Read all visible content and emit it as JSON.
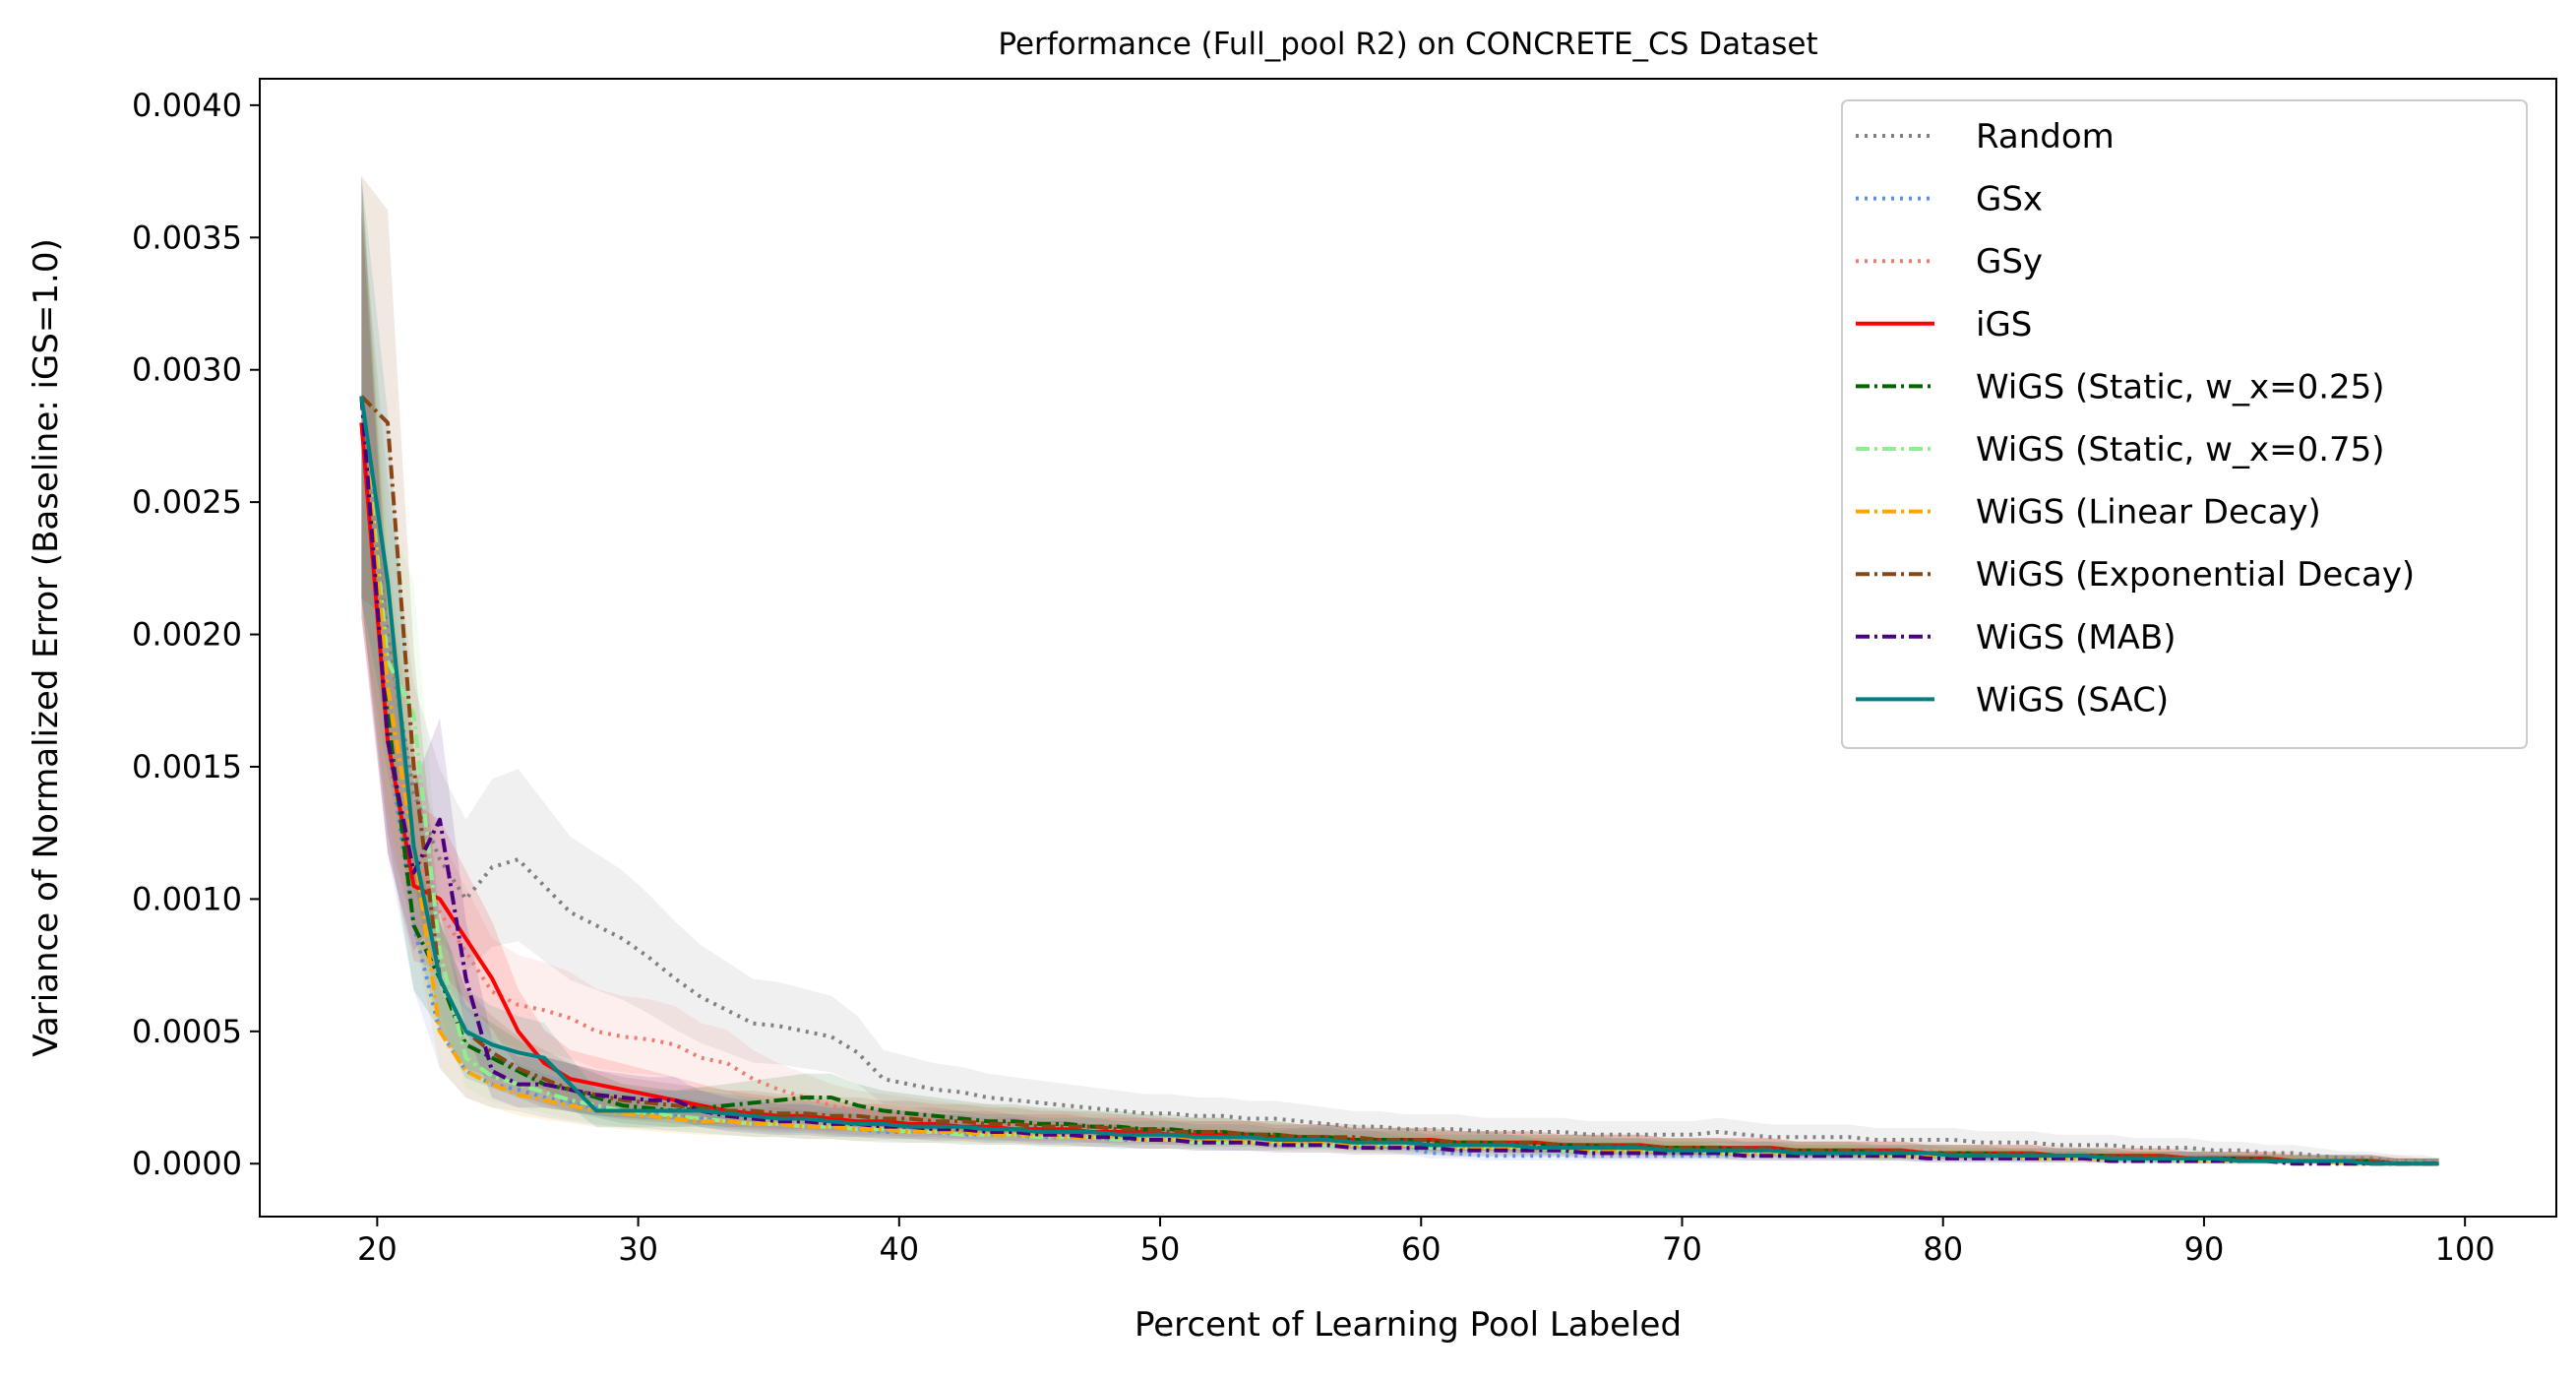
{
  "chart_data": {
    "type": "line",
    "title": "Performance (Full_pool R2) on CONCRETE_CS Dataset",
    "xlabel": "Percent of Learning Pool Labeled",
    "ylabel": "Variance of Normalized Error (Baseline: iGS=1.0)",
    "xlim": [
      15.5,
      103.5
    ],
    "ylim": [
      -0.0002,
      0.0041
    ],
    "xticks": [
      20,
      30,
      40,
      50,
      60,
      70,
      80,
      90,
      100
    ],
    "yticks": [
      0.0,
      0.0005,
      0.001,
      0.0015,
      0.002,
      0.0025,
      0.003,
      0.0035,
      0.004
    ],
    "ytick_labels": [
      "0.0000",
      "0.0005",
      "0.0010",
      "0.0015",
      "0.0020",
      "0.0025",
      "0.0030",
      "0.0035",
      "0.0040"
    ],
    "grid": false,
    "legend_position": "top-right",
    "x": [
      19.4,
      20.4,
      21.4,
      22.4,
      23.4,
      24.4,
      25.4,
      26.4,
      27.4,
      28.4,
      29.4,
      30.4,
      31.4,
      32.4,
      33.4,
      34.4,
      35.4,
      36.4,
      37.4,
      38.4,
      39.4,
      40.4,
      41.4,
      42.4,
      43.4,
      44.4,
      45.4,
      46.4,
      47.4,
      48.4,
      49.4,
      50.4,
      51.4,
      52.4,
      53.4,
      54.4,
      55.4,
      56.4,
      57.4,
      58.4,
      59.4,
      60.4,
      61.4,
      62.4,
      63.4,
      64.4,
      65.4,
      66.4,
      67.4,
      68.4,
      69.4,
      70.4,
      71.4,
      72.4,
      73.4,
      74.4,
      75.4,
      76.4,
      77.4,
      78.4,
      79.4,
      80.4,
      81.4,
      82.4,
      83.4,
      84.4,
      85.4,
      86.4,
      87.4,
      88.4,
      89.4,
      90.4,
      91.4,
      92.4,
      93.4,
      94.4,
      95.4,
      96.4,
      97.4,
      98.4,
      99.0
    ],
    "series": [
      {
        "name": "Random",
        "color": "#808080",
        "dash": "dotted",
        "band": true,
        "values": [
          0.0028,
          0.002,
          0.0014,
          0.00115,
          0.001,
          0.00112,
          0.00115,
          0.00105,
          0.00095,
          0.0009,
          0.00085,
          0.00078,
          0.0007,
          0.00063,
          0.00058,
          0.00053,
          0.00052,
          0.0005,
          0.00048,
          0.00042,
          0.00032,
          0.0003,
          0.00028,
          0.00027,
          0.00025,
          0.00024,
          0.00023,
          0.00022,
          0.00021,
          0.0002,
          0.00019,
          0.00019,
          0.00018,
          0.00018,
          0.00017,
          0.00017,
          0.00016,
          0.00015,
          0.00014,
          0.00014,
          0.00013,
          0.00013,
          0.00013,
          0.00012,
          0.00012,
          0.00012,
          0.00012,
          0.00011,
          0.00011,
          0.00011,
          0.00011,
          0.00011,
          0.00012,
          0.00011,
          0.0001,
          0.0001,
          0.0001,
          0.0001,
          9e-05,
          9e-05,
          9e-05,
          9e-05,
          8e-05,
          8e-05,
          8e-05,
          7e-05,
          7e-05,
          7e-05,
          6e-05,
          6e-05,
          6e-05,
          5e-05,
          5e-05,
          4e-05,
          4e-05,
          3e-05,
          2e-05,
          2e-05,
          1e-05,
          1e-05,
          0.0
        ]
      },
      {
        "name": "GSx",
        "color": "#5b8ee6",
        "dash": "dotted",
        "band": true,
        "values": [
          0.0028,
          0.0016,
          0.0009,
          0.0005,
          0.00035,
          0.0003,
          0.00028,
          0.00025,
          0.00023,
          0.00021,
          0.0002,
          0.00019,
          0.00018,
          0.00017,
          0.00016,
          0.00015,
          0.00015,
          0.00014,
          0.00014,
          0.00013,
          0.00012,
          0.00012,
          0.00012,
          0.00011,
          0.00011,
          0.00011,
          0.0001,
          0.0001,
          0.0001,
          9e-05,
          9e-05,
          9e-05,
          9e-05,
          8e-05,
          8e-05,
          8e-05,
          9e-05,
          0.0001,
          9e-05,
          8e-05,
          6e-05,
          4e-05,
          4e-05,
          3e-05,
          3e-05,
          3e-05,
          3e-05,
          3e-05,
          3e-05,
          3e-05,
          3e-05,
          3e-05,
          3e-05,
          3e-05,
          3e-05,
          3e-05,
          3e-05,
          3e-05,
          3e-05,
          3e-05,
          2e-05,
          2e-05,
          2e-05,
          2e-05,
          2e-05,
          2e-05,
          2e-05,
          2e-05,
          2e-05,
          2e-05,
          2e-05,
          1e-05,
          1e-05,
          1e-05,
          1e-05,
          1e-05,
          1e-05,
          1e-05,
          0.0,
          0.0,
          0.0
        ]
      },
      {
        "name": "GSy",
        "color": "#f07c6e",
        "dash": "dotted",
        "band": true,
        "values": [
          0.0028,
          0.0017,
          0.0012,
          0.00095,
          0.0008,
          0.00065,
          0.0006,
          0.00058,
          0.00055,
          0.0005,
          0.00048,
          0.00047,
          0.00045,
          0.0004,
          0.00038,
          0.00032,
          0.00028,
          0.00025,
          0.00022,
          0.0002,
          0.00019,
          0.00018,
          0.00017,
          0.00016,
          0.00016,
          0.00015,
          0.00015,
          0.00014,
          0.00013,
          0.00013,
          0.00012,
          0.00012,
          0.00011,
          0.00011,
          0.00011,
          0.0001,
          0.0001,
          0.0001,
          9e-05,
          9e-05,
          9e-05,
          8e-05,
          8e-05,
          8e-05,
          8e-05,
          7e-05,
          7e-05,
          7e-05,
          7e-05,
          7e-05,
          6e-05,
          6e-05,
          6e-05,
          6e-05,
          6e-05,
          5e-05,
          5e-05,
          5e-05,
          5e-05,
          5e-05,
          5e-05,
          4e-05,
          4e-05,
          4e-05,
          4e-05,
          4e-05,
          3e-05,
          3e-05,
          3e-05,
          3e-05,
          3e-05,
          2e-05,
          2e-05,
          2e-05,
          2e-05,
          1e-05,
          1e-05,
          1e-05,
          1e-05,
          0.0,
          0.0
        ]
      },
      {
        "name": "iGS",
        "color": "#ff0000",
        "dash": "solid",
        "band": true,
        "values": [
          0.0028,
          0.0016,
          0.00105,
          0.001,
          0.00085,
          0.0007,
          0.0005,
          0.00038,
          0.00032,
          0.0003,
          0.00028,
          0.00026,
          0.00024,
          0.00022,
          0.0002,
          0.00019,
          0.00018,
          0.00018,
          0.00017,
          0.00016,
          0.00016,
          0.00015,
          0.00015,
          0.00014,
          0.00014,
          0.00013,
          0.00013,
          0.00013,
          0.00012,
          0.00012,
          0.00012,
          0.00011,
          0.00011,
          0.00011,
          0.00011,
          0.0001,
          0.0001,
          0.0001,
          9e-05,
          9e-05,
          9e-05,
          9e-05,
          8e-05,
          8e-05,
          8e-05,
          8e-05,
          7e-05,
          7e-05,
          7e-05,
          7e-05,
          6e-05,
          6e-05,
          6e-05,
          6e-05,
          6e-05,
          5e-05,
          5e-05,
          5e-05,
          5e-05,
          5e-05,
          4e-05,
          4e-05,
          4e-05,
          4e-05,
          4e-05,
          3e-05,
          3e-05,
          3e-05,
          3e-05,
          3e-05,
          2e-05,
          2e-05,
          2e-05,
          2e-05,
          1e-05,
          1e-05,
          1e-05,
          1e-05,
          0.0,
          0.0,
          0.0
        ]
      },
      {
        "name": "WiGS (Static, w_x=0.25)",
        "color": "#006400",
        "dash": "dashdot",
        "band": true,
        "values": [
          0.0029,
          0.0017,
          0.0009,
          0.0007,
          0.00045,
          0.0004,
          0.00035,
          0.0003,
          0.00028,
          0.00025,
          0.00022,
          0.00021,
          0.0002,
          0.00021,
          0.00022,
          0.00023,
          0.00024,
          0.00025,
          0.00025,
          0.00022,
          0.0002,
          0.00019,
          0.00018,
          0.00017,
          0.00016,
          0.00016,
          0.00015,
          0.00015,
          0.00014,
          0.00014,
          0.00013,
          0.00013,
          0.00012,
          0.00012,
          0.00011,
          0.00011,
          0.0001,
          0.0001,
          9e-05,
          9e-05,
          9e-05,
          8e-05,
          8e-05,
          8e-05,
          7e-05,
          7e-05,
          7e-05,
          7e-05,
          6e-05,
          6e-05,
          6e-05,
          6e-05,
          6e-05,
          5e-05,
          5e-05,
          5e-05,
          5e-05,
          5e-05,
          4e-05,
          4e-05,
          4e-05,
          4e-05,
          4e-05,
          3e-05,
          3e-05,
          3e-05,
          3e-05,
          3e-05,
          2e-05,
          2e-05,
          2e-05,
          2e-05,
          2e-05,
          1e-05,
          1e-05,
          1e-05,
          1e-05,
          1e-05,
          0.0,
          0.0,
          0.0
        ]
      },
      {
        "name": "WiGS (Static, w_x=0.75)",
        "color": "#90ee90",
        "dash": "dashdot",
        "band": true,
        "values": [
          0.0029,
          0.0019,
          0.0017,
          0.0008,
          0.0004,
          0.00033,
          0.0003,
          0.00027,
          0.00024,
          0.00022,
          0.0002,
          0.00019,
          0.00018,
          0.00017,
          0.00016,
          0.00015,
          0.00015,
          0.00014,
          0.00014,
          0.00013,
          0.00013,
          0.00012,
          0.00012,
          0.00011,
          0.00011,
          0.00011,
          0.0001,
          0.0001,
          0.0001,
          9e-05,
          9e-05,
          9e-05,
          8e-05,
          8e-05,
          8e-05,
          8e-05,
          7e-05,
          7e-05,
          7e-05,
          7e-05,
          7e-05,
          6e-05,
          6e-05,
          6e-05,
          6e-05,
          6e-05,
          5e-05,
          5e-05,
          5e-05,
          5e-05,
          5e-05,
          5e-05,
          4e-05,
          4e-05,
          4e-05,
          4e-05,
          4e-05,
          4e-05,
          3e-05,
          3e-05,
          3e-05,
          3e-05,
          3e-05,
          3e-05,
          2e-05,
          2e-05,
          2e-05,
          2e-05,
          2e-05,
          2e-05,
          1e-05,
          1e-05,
          1e-05,
          1e-05,
          1e-05,
          1e-05,
          0.0,
          0.0,
          0.0,
          0.0,
          0.0
        ]
      },
      {
        "name": "WiGS (Linear Decay)",
        "color": "#ffa500",
        "dash": "dashdot",
        "band": true,
        "values": [
          0.0029,
          0.0018,
          0.0012,
          0.0005,
          0.00035,
          0.0003,
          0.00026,
          0.00024,
          0.00022,
          0.0002,
          0.00019,
          0.00018,
          0.00017,
          0.00016,
          0.00016,
          0.00015,
          0.00015,
          0.00014,
          0.00014,
          0.00013,
          0.00013,
          0.00012,
          0.00012,
          0.00012,
          0.00011,
          0.00011,
          0.00011,
          0.0001,
          0.0001,
          0.0001,
          9e-05,
          9e-05,
          9e-05,
          9e-05,
          8e-05,
          8e-05,
          8e-05,
          8e-05,
          7e-05,
          7e-05,
          7e-05,
          7e-05,
          6e-05,
          6e-05,
          6e-05,
          6e-05,
          6e-05,
          5e-05,
          5e-05,
          5e-05,
          5e-05,
          5e-05,
          4e-05,
          4e-05,
          4e-05,
          4e-05,
          4e-05,
          4e-05,
          3e-05,
          3e-05,
          3e-05,
          3e-05,
          3e-05,
          3e-05,
          2e-05,
          2e-05,
          2e-05,
          2e-05,
          2e-05,
          2e-05,
          1e-05,
          1e-05,
          1e-05,
          1e-05,
          1e-05,
          1e-05,
          0.0,
          0.0,
          0.0,
          0.0,
          0.0
        ]
      },
      {
        "name": "WiGS (Exponential Decay)",
        "color": "#8b4513",
        "dash": "dashdot",
        "band": true,
        "values": [
          0.0029,
          0.0028,
          0.0015,
          0.0007,
          0.0005,
          0.00042,
          0.00036,
          0.00032,
          0.00028,
          0.00026,
          0.00024,
          0.00023,
          0.00022,
          0.00021,
          0.0002,
          0.0002,
          0.00019,
          0.00019,
          0.00018,
          0.00018,
          0.00017,
          0.00017,
          0.00016,
          0.00016,
          0.00015,
          0.00015,
          0.00014,
          0.00014,
          0.00014,
          0.00013,
          0.00013,
          0.00012,
          0.00012,
          0.00012,
          0.00011,
          0.00011,
          0.0001,
          0.0001,
          0.0001,
          9e-05,
          9e-05,
          9e-05,
          8e-05,
          8e-05,
          8e-05,
          8e-05,
          7e-05,
          7e-05,
          7e-05,
          7e-05,
          6e-05,
          6e-05,
          6e-05,
          6e-05,
          6e-05,
          5e-05,
          5e-05,
          5e-05,
          5e-05,
          5e-05,
          4e-05,
          4e-05,
          4e-05,
          4e-05,
          4e-05,
          3e-05,
          3e-05,
          3e-05,
          3e-05,
          3e-05,
          2e-05,
          2e-05,
          2e-05,
          2e-05,
          1e-05,
          1e-05,
          1e-05,
          1e-05,
          0.0,
          0.0,
          0.0
        ]
      },
      {
        "name": "WiGS (MAB)",
        "color": "#4b0082",
        "dash": "dashdot",
        "band": true,
        "values": [
          0.0029,
          0.0016,
          0.0011,
          0.0013,
          0.0007,
          0.00035,
          0.0003,
          0.0003,
          0.00028,
          0.00026,
          0.00025,
          0.00024,
          0.00024,
          0.0002,
          0.00018,
          0.00017,
          0.00016,
          0.00016,
          0.00015,
          0.00015,
          0.00014,
          0.00014,
          0.00013,
          0.00013,
          0.00012,
          0.00012,
          0.00011,
          0.00011,
          0.0001,
          0.0001,
          9e-05,
          9e-05,
          8e-05,
          8e-05,
          8e-05,
          7e-05,
          7e-05,
          7e-05,
          6e-05,
          6e-05,
          6e-05,
          6e-05,
          5e-05,
          5e-05,
          5e-05,
          5e-05,
          5e-05,
          4e-05,
          4e-05,
          4e-05,
          4e-05,
          4e-05,
          4e-05,
          3e-05,
          3e-05,
          3e-05,
          3e-05,
          3e-05,
          3e-05,
          3e-05,
          2e-05,
          2e-05,
          2e-05,
          2e-05,
          2e-05,
          2e-05,
          2e-05,
          1e-05,
          1e-05,
          1e-05,
          1e-05,
          1e-05,
          1e-05,
          1e-05,
          0.0,
          0.0,
          0.0,
          0.0,
          0.0,
          0.0,
          0.0
        ]
      },
      {
        "name": "WiGS (SAC)",
        "color": "#008080",
        "dash": "solid",
        "band": true,
        "values": [
          0.0029,
          0.0022,
          0.0012,
          0.0007,
          0.0005,
          0.00045,
          0.00042,
          0.0004,
          0.0003,
          0.0002,
          0.0002,
          0.0002,
          0.0002,
          0.0002,
          0.00019,
          0.00018,
          0.00017,
          0.00017,
          0.00016,
          0.00015,
          0.00015,
          0.00014,
          0.00014,
          0.00014,
          0.00013,
          0.00013,
          0.00012,
          0.00012,
          0.00012,
          0.00011,
          0.00011,
          0.00011,
          0.0001,
          0.0001,
          0.0001,
          9e-05,
          9e-05,
          9e-05,
          8e-05,
          8e-05,
          8e-05,
          7e-05,
          7e-05,
          7e-05,
          7e-05,
          6e-05,
          6e-05,
          6e-05,
          6e-05,
          6e-05,
          5e-05,
          5e-05,
          5e-05,
          5e-05,
          5e-05,
          4e-05,
          4e-05,
          4e-05,
          4e-05,
          4e-05,
          4e-05,
          3e-05,
          3e-05,
          3e-05,
          3e-05,
          3e-05,
          3e-05,
          2e-05,
          2e-05,
          2e-05,
          2e-05,
          2e-05,
          1e-05,
          1e-05,
          1e-05,
          1e-05,
          1e-05,
          0.0,
          0.0,
          0.0,
          0.0
        ]
      }
    ]
  }
}
